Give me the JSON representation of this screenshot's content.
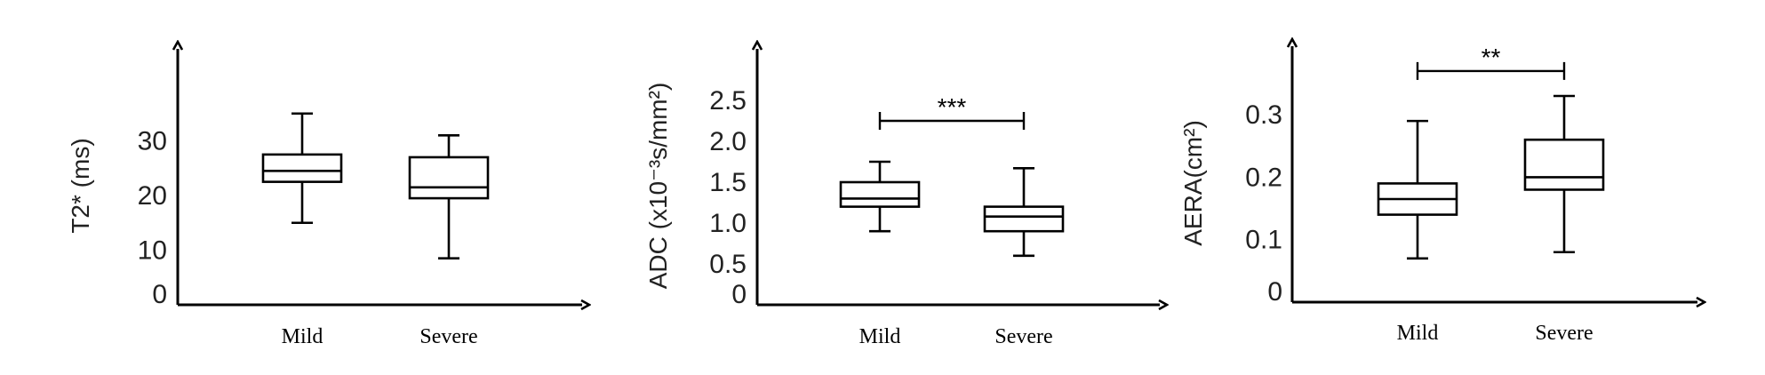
{
  "chart_data": [
    {
      "type": "box",
      "ylabel": "T2* (ms)",
      "yticks": [
        0,
        10,
        20,
        30
      ],
      "ylim": [
        0,
        40
      ],
      "categories": [
        "Mild",
        "Severe"
      ],
      "boxes": [
        {
          "min": 15,
          "q1": 22.5,
          "median": 24.5,
          "q3": 27.5,
          "max": 35
        },
        {
          "min": 8.5,
          "q1": 19.5,
          "median": 21.5,
          "q3": 27,
          "max": 31
        }
      ],
      "significance": null
    },
    {
      "type": "box",
      "ylabel": "ADC (x10⁻³s/mm²)",
      "yticks": [
        0,
        0.5,
        1.0,
        1.5,
        2.0,
        2.5
      ],
      "yticklabels": [
        "0",
        "0.5",
        "1.0",
        "1.5",
        "2.0",
        "2.5"
      ],
      "ylim": [
        0,
        2.85
      ],
      "categories": [
        "Mild",
        "Severe"
      ],
      "boxes": [
        {
          "min": 0.9,
          "q1": 1.2,
          "median": 1.3,
          "q3": 1.5,
          "max": 1.75
        },
        {
          "min": 0.6,
          "q1": 0.9,
          "median": 1.08,
          "q3": 1.2,
          "max": 1.67
        }
      ],
      "significance": {
        "label": "***",
        "y": 2.25
      }
    },
    {
      "type": "box",
      "ylabel": "AERA(cm²)",
      "yticks": [
        0,
        0.1,
        0.2,
        0.3
      ],
      "yticklabels": [
        "0",
        "0.1",
        "0.2",
        "0.3"
      ],
      "ylim": [
        0,
        0.38
      ],
      "categories": [
        "Mild",
        "Severe"
      ],
      "boxes": [
        {
          "min": 0.07,
          "q1": 0.14,
          "median": 0.165,
          "q3": 0.19,
          "max": 0.29
        },
        {
          "min": 0.08,
          "q1": 0.18,
          "median": 0.2,
          "q3": 0.26,
          "max": 0.33
        }
      ],
      "significance": {
        "label": "**",
        "y": 0.37
      }
    }
  ]
}
